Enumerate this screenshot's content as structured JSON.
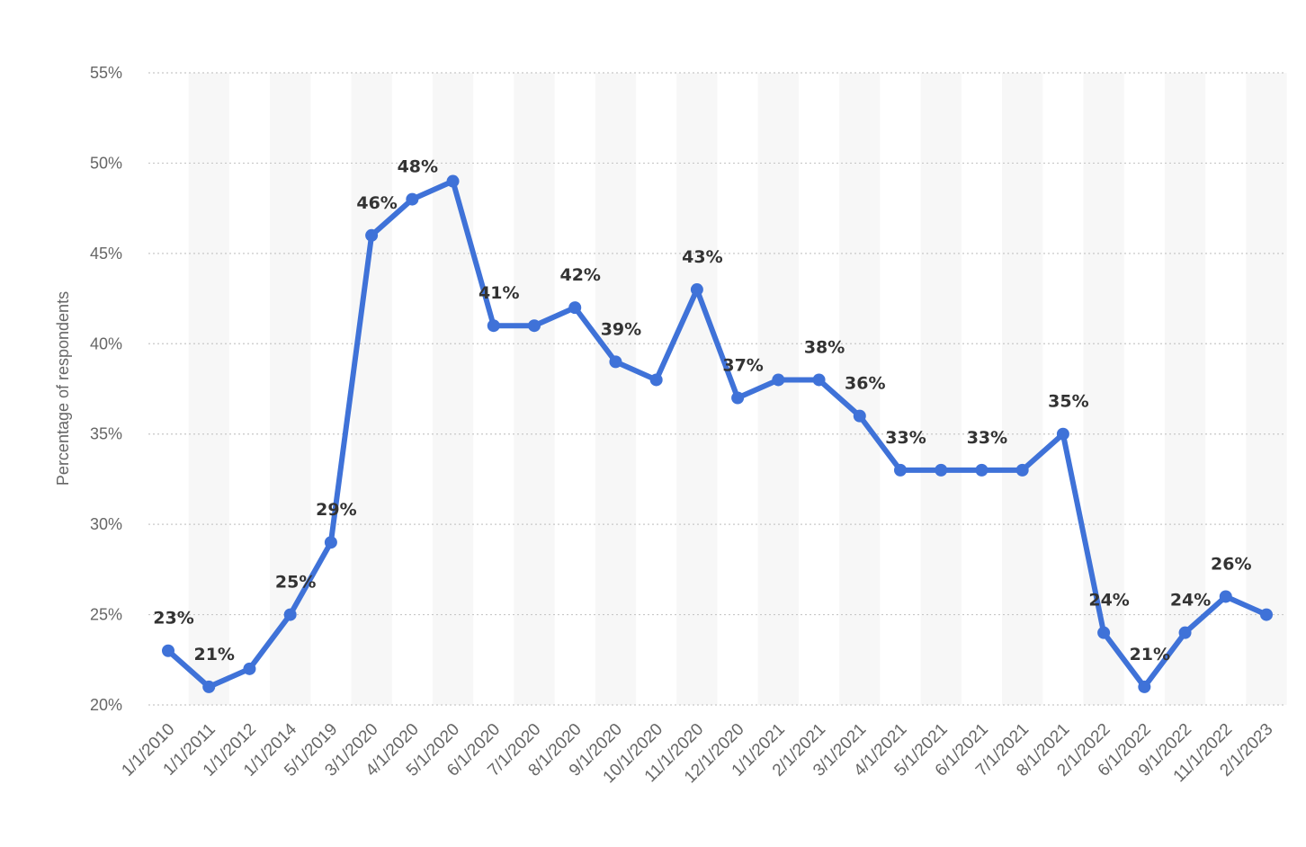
{
  "chart_data": {
    "type": "line",
    "title": "",
    "xlabel": "",
    "ylabel": "Percentage of respondents",
    "ylim": [
      20,
      55
    ],
    "y_ticks": [
      "20%",
      "25%",
      "30%",
      "35%",
      "40%",
      "45%",
      "50%",
      "55%"
    ],
    "y_tick_values": [
      20,
      25,
      30,
      35,
      40,
      45,
      50,
      55
    ],
    "grid": "horizontal-dotted",
    "categories": [
      "1/1/2010",
      "1/1/2011",
      "1/1/2012",
      "1/1/2014",
      "5/1/2019",
      "3/1/2020",
      "4/1/2020",
      "5/1/2020",
      "6/1/2020",
      "7/1/2020",
      "8/1/2020",
      "9/1/2020",
      "10/1/2020",
      "11/1/2020",
      "12/1/2020",
      "1/1/2021",
      "2/1/2021",
      "3/1/2021",
      "4/1/2021",
      "5/1/2021",
      "6/1/2021",
      "7/1/2021",
      "8/1/2021",
      "2/1/2022",
      "6/1/2022",
      "9/1/2022",
      "11/1/2022",
      "2/1/2023"
    ],
    "series": [
      {
        "values": [
          23,
          21,
          22,
          25,
          29,
          46,
          48,
          49,
          41,
          41,
          42,
          39,
          38,
          43,
          37,
          38,
          38,
          36,
          33,
          33,
          33,
          33,
          35,
          24,
          21,
          24,
          26,
          25
        ],
        "data_labels": [
          "23%",
          "21%",
          "",
          "25%",
          "29%",
          "46%",
          "48%",
          "",
          "41%",
          "",
          "42%",
          "39%",
          "",
          "43%",
          "37%",
          "",
          "38%",
          "36%",
          "33%",
          "",
          "33%",
          "",
          "35%",
          "24%",
          "21%",
          "24%",
          "26%",
          ""
        ],
        "color": "#3f72d8"
      }
    ],
    "colors": {
      "line": "#3f72d8",
      "grid": "#c8c8c8",
      "band": "#f7f7f7",
      "axis_text": "#666666",
      "label_text": "#333333"
    }
  }
}
